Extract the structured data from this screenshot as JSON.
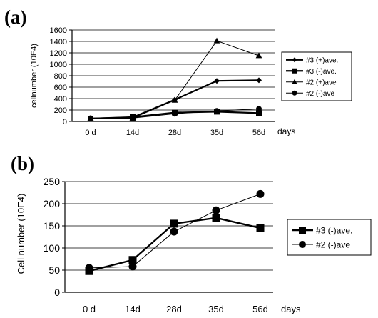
{
  "chart_data": [
    {
      "panel_label": "(a)",
      "type": "line",
      "categories": [
        "0 d",
        "14d",
        "28d",
        "35d",
        "56d"
      ],
      "xlabel": "days",
      "ylabel": "cellnumber (10E4)",
      "ylim": [
        0,
        1600
      ],
      "yticks": [
        0,
        200,
        400,
        600,
        800,
        1000,
        1200,
        1400,
        1600
      ],
      "grid": "horizontal",
      "legend": "right",
      "series": [
        {
          "name": "#3 (+)ave.",
          "marker": "diamond",
          "style": "bold",
          "values": [
            50,
            70,
            380,
            710,
            720
          ]
        },
        {
          "name": "#3 (-)ave.",
          "marker": "square",
          "style": "bold",
          "values": [
            50,
            75,
            155,
            170,
            145
          ]
        },
        {
          "name": "#2 (+)ave",
          "marker": "triangle",
          "style": "thin",
          "values": [
            55,
            55,
            370,
            1410,
            1150
          ]
        },
        {
          "name": "#2 (-)ave",
          "marker": "circle",
          "style": "thin",
          "values": [
            55,
            60,
            135,
            185,
            220
          ]
        }
      ]
    },
    {
      "panel_label": "(b)",
      "type": "line",
      "categories": [
        "0 d",
        "14d",
        "28d",
        "35d",
        "56d"
      ],
      "xlabel": "days",
      "ylabel": "Cell number (10E4)",
      "ylim": [
        0,
        250
      ],
      "yticks": [
        0,
        50,
        100,
        150,
        200,
        250
      ],
      "grid": "horizontal",
      "legend": "right",
      "series": [
        {
          "name": "#3 (-)ave.",
          "marker": "square",
          "style": "bold",
          "values": [
            48,
            73,
            155,
            168,
            145
          ]
        },
        {
          "name": "#2 (-)ave",
          "marker": "circle",
          "style": "thin",
          "values": [
            55,
            58,
            137,
            185,
            222
          ]
        }
      ]
    }
  ]
}
